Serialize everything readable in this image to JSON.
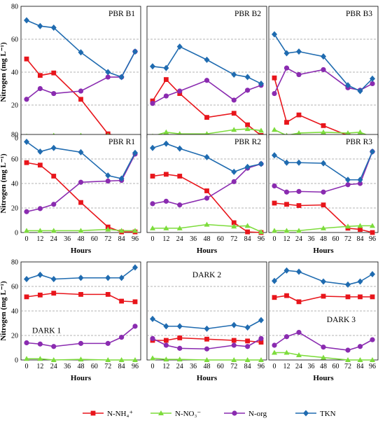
{
  "chart_data": {
    "type": "line",
    "x_values": [
      0,
      12,
      24,
      36,
      48,
      60,
      72,
      84,
      96
    ],
    "x_tick_labels": [
      "0",
      "12",
      "24",
      "36",
      "48",
      "60",
      "72",
      "84",
      "96"
    ],
    "ylim": [
      0,
      80
    ],
    "y_tick_labels": [
      "0",
      "20",
      "40",
      "60",
      "80"
    ],
    "xlabel": "Hours",
    "ylabel": "Nitrogen (mg L⁻¹)",
    "grid": "horizontal dashed",
    "legend_position": "bottom",
    "series_styles": [
      {
        "key": "nh4",
        "name": "N-NH₄⁺",
        "color": "#e8151b",
        "marker": "square"
      },
      {
        "key": "no3",
        "name": "N-NO₃⁻",
        "color": "#7ddc3c",
        "marker": "triangle"
      },
      {
        "key": "norg",
        "name": "N-org",
        "color": "#8a2bb0",
        "marker": "circle"
      },
      {
        "key": "tkn",
        "name": "TKN",
        "color": "#1f6bb0",
        "marker": "diamond"
      }
    ],
    "panels": [
      {
        "title": "PBR B1",
        "title_pos": "top-right",
        "x": [
          0,
          12,
          24,
          48,
          72,
          84,
          96
        ],
        "series": {
          "nh4": [
            48,
            38,
            39.5,
            23.5,
            2.5,
            0.5,
            0.5
          ],
          "no3": [
            1,
            0.5,
            1.5,
            1.5,
            1.5,
            0.5,
            0.5
          ],
          "norg": [
            23.5,
            30,
            27,
            28.5,
            37,
            37,
            52.5
          ],
          "tkn": [
            71.5,
            68,
            67,
            52,
            40,
            37,
            52.5
          ]
        }
      },
      {
        "title": "PBR B2",
        "title_pos": "top-right",
        "x": [
          0,
          12,
          24,
          48,
          72,
          84,
          96
        ],
        "series": {
          "nh4": [
            22.5,
            35.5,
            27,
            12.5,
            15,
            8,
            1.5
          ],
          "no3": [
            1,
            3.5,
            2.5,
            2.5,
            5,
            5.5,
            4.5
          ],
          "norg": [
            21,
            25.5,
            28.5,
            35,
            23,
            29,
            32
          ],
          "tkn": [
            43.5,
            42.5,
            55.5,
            47.5,
            38.5,
            37,
            33
          ]
        }
      },
      {
        "title": "PBR B3",
        "title_pos": "top-right",
        "x": [
          0,
          12,
          24,
          48,
          72,
          84,
          96
        ],
        "series": {
          "nh4": [
            36.5,
            9.5,
            14,
            7.5,
            1.5,
            0.5,
            0
          ],
          "no3": [
            5,
            1.5,
            3,
            3.5,
            3,
            3.5,
            0.5
          ],
          "norg": [
            27,
            42.5,
            38.5,
            41.5,
            30.5,
            29,
            33
          ],
          "tkn": [
            63,
            51.5,
            52.5,
            49.5,
            32,
            28.5,
            36
          ]
        }
      },
      {
        "title": "PBR R1",
        "title_pos": "top-right",
        "x": [
          0,
          12,
          24,
          48,
          72,
          84,
          96
        ],
        "series": {
          "nh4": [
            57,
            55,
            46,
            24.5,
            4.5,
            0.5,
            0.5
          ],
          "no3": [
            1.5,
            1.5,
            1.5,
            1.5,
            2.5,
            1.5,
            1.5
          ],
          "norg": [
            17,
            19.5,
            23,
            41,
            42,
            42.5,
            64
          ],
          "tkn": [
            74,
            66,
            69,
            65.5,
            46.5,
            44,
            65
          ]
        }
      },
      {
        "title": "PBR R2",
        "title_pos": "top-right",
        "x": [
          0,
          12,
          24,
          48,
          72,
          84,
          96
        ],
        "series": {
          "nh4": [
            46,
            47.5,
            46,
            34,
            8,
            0.5,
            0
          ],
          "no3": [
            3.5,
            3.5,
            3.5,
            6.5,
            5,
            5.5,
            0.5
          ],
          "norg": [
            23.5,
            25.5,
            22.5,
            28,
            41.5,
            52.5,
            56
          ],
          "tkn": [
            69,
            72.5,
            68.5,
            61.5,
            49.5,
            53.5,
            56
          ]
        }
      },
      {
        "title": "PBR R3",
        "title_pos": "top-right",
        "x": [
          0,
          12,
          24,
          48,
          72,
          84,
          96
        ],
        "series": {
          "nh4": [
            24,
            23,
            22,
            22.5,
            3.5,
            2.5,
            0
          ],
          "no3": [
            1.5,
            1.5,
            1.5,
            3.5,
            5,
            5.5,
            5.5
          ],
          "norg": [
            38,
            33,
            33.5,
            33,
            39,
            40,
            66
          ],
          "tkn": [
            63,
            57,
            57,
            56.5,
            43,
            43,
            66
          ]
        }
      },
      {
        "title": "DARK 1",
        "title_pos": "mid-left",
        "x": [
          0,
          12,
          24,
          48,
          72,
          84,
          96
        ],
        "series": {
          "nh4": [
            51.5,
            53,
            54.5,
            53.5,
            53.5,
            48,
            47.5
          ],
          "no3": [
            1,
            1,
            0,
            0.5,
            0,
            0,
            0
          ],
          "norg": [
            14,
            13,
            11,
            13.5,
            13.5,
            18.5,
            27.5
          ],
          "tkn": [
            66,
            69.5,
            66,
            67,
            67,
            67,
            75.5
          ]
        }
      },
      {
        "title": "DARK 2",
        "title_pos": "top-center",
        "x": [
          0,
          12,
          24,
          48,
          72,
          84,
          96
        ],
        "series": {
          "nh4": [
            16,
            16,
            18,
            17,
            16,
            15.5,
            14.5
          ],
          "no3": [
            1.5,
            0.5,
            0.5,
            0,
            0,
            0,
            0
          ],
          "norg": [
            17.5,
            12,
            9.5,
            9,
            12,
            11,
            17.5
          ],
          "tkn": [
            33.5,
            27.5,
            27.5,
            25.5,
            28.5,
            26.5,
            32.5
          ]
        }
      },
      {
        "title": "DARK 3",
        "title_pos": "mid-right",
        "x": [
          0,
          12,
          24,
          48,
          72,
          84,
          96
        ],
        "series": {
          "nh4": [
            51,
            52.5,
            47.5,
            52,
            51.5,
            51.5,
            51.5
          ],
          "no3": [
            6,
            6,
            4,
            2,
            0,
            0,
            0
          ],
          "norg": [
            12,
            19,
            22.5,
            10.5,
            8,
            11,
            16.5
          ],
          "tkn": [
            64.5,
            73,
            72,
            64,
            61.5,
            64,
            70
          ]
        }
      }
    ]
  }
}
